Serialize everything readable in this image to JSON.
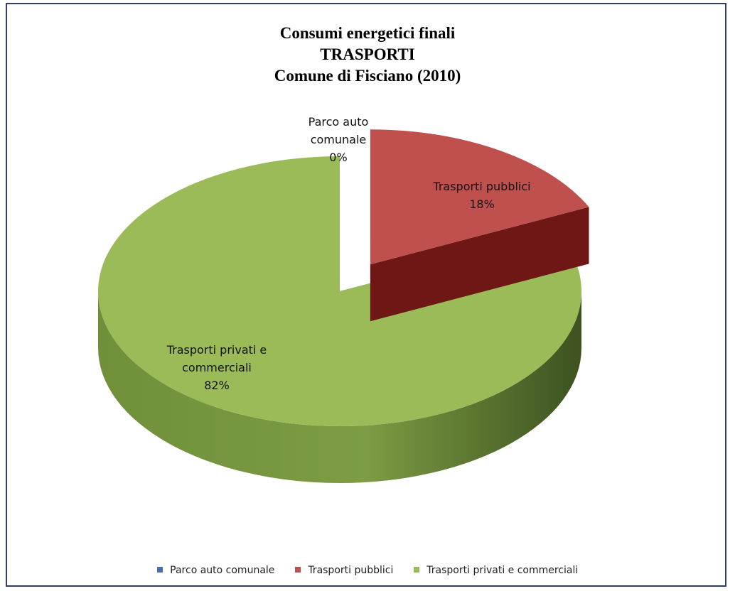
{
  "chart_data": {
    "type": "pie",
    "title": "Consumi energetici finali",
    "subtitle_lines": [
      "TRASPORTI",
      "Comune di Fisciano (2010)"
    ],
    "categories": [
      "Parco auto comunale",
      "Trasporti pubblici",
      "Trasporti privati e commerciali"
    ],
    "values": [
      0,
      18,
      82
    ],
    "value_unit": "%",
    "data_labels": [
      [
        "Parco auto",
        "comunale",
        "0%"
      ],
      [
        "Trasporti pubblici",
        "18%"
      ],
      [
        "Trasporti privati e",
        "commerciali",
        "82%"
      ]
    ],
    "colors": [
      "#4a6fb0",
      "#c0504d",
      "#9bbb59"
    ],
    "exploded_slice": "Trasporti pubblici",
    "legend_position": "bottom",
    "style": "3d"
  }
}
